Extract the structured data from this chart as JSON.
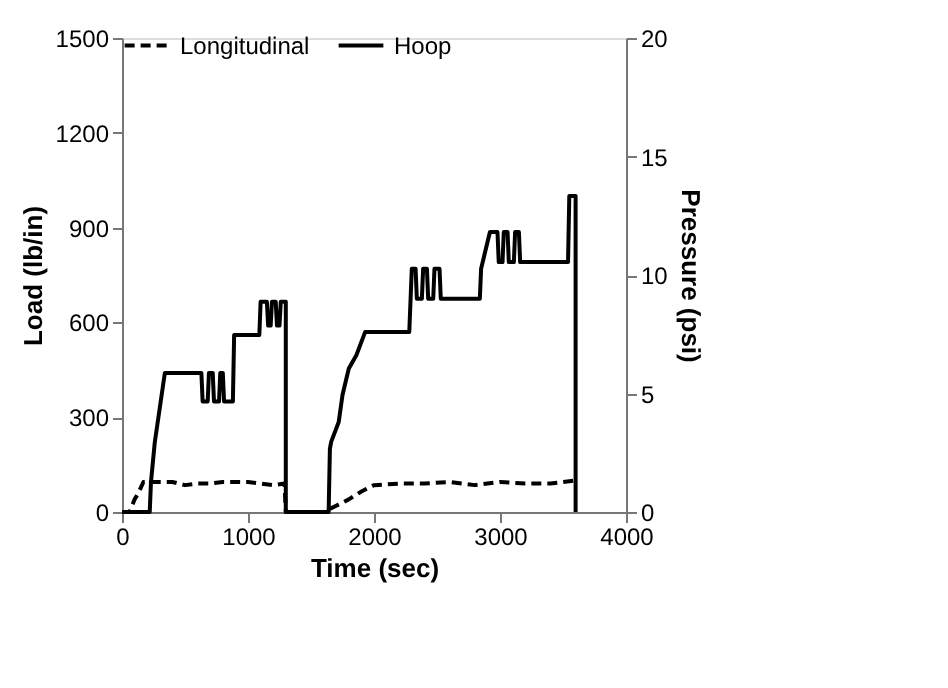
{
  "chart_data": {
    "type": "line",
    "xlabel": "Time (sec)",
    "ylabel": "Load (lb/in)",
    "y2label": "Pressure (psi)",
    "xlim": [
      0,
      4000
    ],
    "xticks": [
      0,
      1000,
      2000,
      3000,
      4000
    ],
    "ylim": [
      0,
      1500
    ],
    "yticks": [
      0,
      300,
      600,
      900,
      1200,
      1500
    ],
    "y2lim": [
      0,
      20
    ],
    "y2ticks": [
      0,
      5,
      10,
      15,
      20
    ],
    "grid": false,
    "legend": "top",
    "marker": "none",
    "series": [
      {
        "name": "Longitudinal",
        "color": "#000000",
        "line_style": "dashed",
        "x": [
          0,
          60,
          100,
          130,
          170,
          400,
          500,
          600,
          700,
          800,
          900,
          1000,
          1100,
          1200,
          1290,
          1300,
          1600,
          1700,
          1800,
          1900,
          2000,
          2200,
          2400,
          2600,
          2800,
          3000,
          3200,
          3400,
          3600
        ],
        "values": [
          0,
          0,
          40,
          60,
          95,
          95,
          85,
          90,
          90,
          95,
          95,
          95,
          90,
          85,
          90,
          0,
          0,
          20,
          40,
          65,
          85,
          90,
          90,
          95,
          85,
          95,
          90,
          90,
          100
        ]
      },
      {
        "name": "Hoop",
        "color": "#000000",
        "line_style": "solid",
        "x": [
          0,
          220,
          230,
          260,
          300,
          340,
          630,
          640,
          680,
          690,
          720,
          730,
          770,
          780,
          800,
          810,
          880,
          890,
          1090,
          1100,
          1150,
          1160,
          1180,
          1190,
          1220,
          1230,
          1250,
          1260,
          1300,
          1300,
          1640,
          1650,
          1660,
          1720,
          1750,
          1800,
          1860,
          1930,
          1980,
          2280,
          2300,
          2330,
          2340,
          2380,
          2390,
          2420,
          2430,
          2470,
          2480,
          2520,
          2530,
          2840,
          2850,
          2920,
          2930,
          2980,
          2990,
          3020,
          3030,
          3060,
          3070,
          3110,
          3120,
          3150,
          3160,
          3540,
          3550,
          3600,
          3600
        ],
        "values": [
          0,
          0,
          95,
          220,
          330,
          440,
          440,
          350,
          350,
          440,
          440,
          350,
          350,
          440,
          440,
          350,
          350,
          560,
          560,
          665,
          665,
          590,
          590,
          665,
          665,
          590,
          590,
          665,
          665,
          0,
          0,
          200,
          222,
          285,
          370,
          454,
          496,
          570,
          570,
          570,
          770,
          770,
          675,
          675,
          770,
          770,
          675,
          675,
          770,
          770,
          675,
          675,
          770,
          886,
          886,
          886,
          791,
          791,
          886,
          886,
          791,
          791,
          886,
          886,
          791,
          791,
          1000,
          1000,
          0
        ]
      }
    ]
  }
}
